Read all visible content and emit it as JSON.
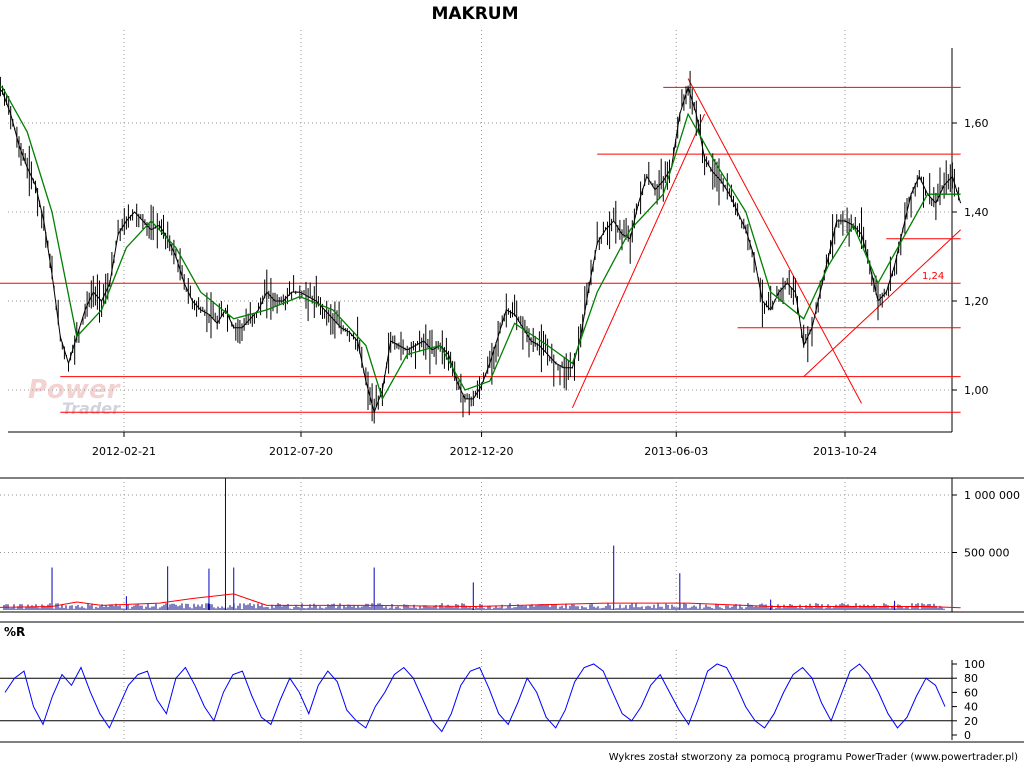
{
  "chart_data": {
    "type": "line",
    "title": "MAKRUM",
    "footer": "Wykres został stworzony za pomocą programu PowerTrader (www.powertrader.pl)",
    "watermark": "PowerTrader",
    "x_tick_labels": [
      "2012-02-21",
      "2012-07-20",
      "2012-12-20",
      "2013-06-03",
      "2013-10-24"
    ],
    "price_panel": {
      "y_ticks": [
        1.0,
        1.2,
        1.4,
        1.6
      ],
      "y_tick_labels": [
        "1,00",
        "1,20",
        "1,40",
        "1,60"
      ],
      "ylim": [
        0.92,
        1.78
      ],
      "annotation": "1,24",
      "series": [
        {
          "kind": "close",
          "color": "#000000",
          "points": [
            [
              "2011-10-20",
              1.72
            ],
            [
              "2011-10-27",
              1.7
            ],
            [
              "2011-11-03",
              1.69
            ],
            [
              "2011-11-10",
              1.67
            ],
            [
              "2011-11-17",
              1.62
            ],
            [
              "2011-11-24",
              1.55
            ],
            [
              "2011-12-01",
              1.5
            ],
            [
              "2011-12-08",
              1.46
            ],
            [
              "2011-12-15",
              1.38
            ],
            [
              "2011-12-22",
              1.26
            ],
            [
              "2011-12-29",
              1.12
            ],
            [
              "2012-01-05",
              1.06
            ],
            [
              "2012-01-12",
              1.12
            ],
            [
              "2012-01-19",
              1.18
            ],
            [
              "2012-01-26",
              1.22
            ],
            [
              "2012-02-02",
              1.2
            ],
            [
              "2012-02-09",
              1.24
            ],
            [
              "2012-02-16",
              1.35
            ],
            [
              "2012-02-23",
              1.38
            ],
            [
              "2012-03-01",
              1.4
            ],
            [
              "2012-03-08",
              1.38
            ],
            [
              "2012-03-15",
              1.36
            ],
            [
              "2012-03-22",
              1.37
            ],
            [
              "2012-03-29",
              1.34
            ],
            [
              "2012-04-05",
              1.3
            ],
            [
              "2012-04-12",
              1.24
            ],
            [
              "2012-04-19",
              1.2
            ],
            [
              "2012-04-26",
              1.18
            ],
            [
              "2012-05-03",
              1.17
            ],
            [
              "2012-05-10",
              1.15
            ],
            [
              "2012-05-17",
              1.18
            ],
            [
              "2012-05-24",
              1.14
            ],
            [
              "2012-05-31",
              1.14
            ],
            [
              "2012-06-07",
              1.16
            ],
            [
              "2012-06-14",
              1.18
            ],
            [
              "2012-06-21",
              1.22
            ],
            [
              "2012-06-28",
              1.2
            ],
            [
              "2012-07-05",
              1.2
            ],
            [
              "2012-07-12",
              1.22
            ],
            [
              "2012-07-19",
              1.22
            ],
            [
              "2012-07-26",
              1.21
            ],
            [
              "2012-08-02",
              1.2
            ],
            [
              "2012-08-09",
              1.18
            ],
            [
              "2012-08-16",
              1.16
            ],
            [
              "2012-08-23",
              1.14
            ],
            [
              "2012-08-30",
              1.13
            ],
            [
              "2012-09-06",
              1.11
            ],
            [
              "2012-09-13",
              1.02
            ],
            [
              "2012-09-20",
              0.95
            ],
            [
              "2012-09-27",
              1.0
            ],
            [
              "2012-10-04",
              1.11
            ],
            [
              "2012-10-11",
              1.1
            ],
            [
              "2012-10-18",
              1.09
            ],
            [
              "2012-10-25",
              1.1
            ],
            [
              "2012-11-01",
              1.11
            ],
            [
              "2012-11-08",
              1.09
            ],
            [
              "2012-11-15",
              1.1
            ],
            [
              "2012-11-22",
              1.08
            ],
            [
              "2012-11-29",
              1.02
            ],
            [
              "2012-12-06",
              0.98
            ],
            [
              "2012-12-13",
              0.98
            ],
            [
              "2012-12-20",
              1.01
            ],
            [
              "2012-12-27",
              1.06
            ],
            [
              "2013-01-03",
              1.12
            ],
            [
              "2013-01-10",
              1.18
            ],
            [
              "2013-01-17",
              1.17
            ],
            [
              "2013-01-24",
              1.14
            ],
            [
              "2013-01-31",
              1.11
            ],
            [
              "2013-02-07",
              1.1
            ],
            [
              "2013-02-14",
              1.08
            ],
            [
              "2013-02-21",
              1.06
            ],
            [
              "2013-02-28",
              1.05
            ],
            [
              "2013-03-07",
              1.05
            ],
            [
              "2013-03-14",
              1.12
            ],
            [
              "2013-03-21",
              1.23
            ],
            [
              "2013-03-28",
              1.33
            ],
            [
              "2013-04-04",
              1.36
            ],
            [
              "2013-04-11",
              1.38
            ],
            [
              "2013-04-18",
              1.35
            ],
            [
              "2013-04-25",
              1.34
            ],
            [
              "2013-05-02",
              1.42
            ],
            [
              "2013-05-09",
              1.48
            ],
            [
              "2013-05-16",
              1.45
            ],
            [
              "2013-05-23",
              1.47
            ],
            [
              "2013-05-30",
              1.5
            ],
            [
              "2013-06-06",
              1.62
            ],
            [
              "2013-06-13",
              1.68
            ],
            [
              "2013-06-20",
              1.62
            ],
            [
              "2013-06-27",
              1.52
            ],
            [
              "2013-07-04",
              1.49
            ],
            [
              "2013-07-11",
              1.47
            ],
            [
              "2013-07-18",
              1.44
            ],
            [
              "2013-07-25",
              1.4
            ],
            [
              "2013-08-01",
              1.36
            ],
            [
              "2013-08-08",
              1.3
            ],
            [
              "2013-08-15",
              1.2
            ],
            [
              "2013-08-22",
              1.18
            ],
            [
              "2013-08-29",
              1.22
            ],
            [
              "2013-09-05",
              1.24
            ],
            [
              "2013-09-12",
              1.22
            ],
            [
              "2013-09-19",
              1.1
            ],
            [
              "2013-09-26",
              1.14
            ],
            [
              "2013-10-03",
              1.22
            ],
            [
              "2013-10-10",
              1.3
            ],
            [
              "2013-10-17",
              1.38
            ],
            [
              "2013-10-24",
              1.38
            ],
            [
              "2013-10-31",
              1.37
            ],
            [
              "2013-11-07",
              1.35
            ],
            [
              "2013-11-14",
              1.28
            ],
            [
              "2013-11-21",
              1.2
            ],
            [
              "2013-11-28",
              1.22
            ],
            [
              "2013-12-05",
              1.28
            ],
            [
              "2013-12-12",
              1.36
            ],
            [
              "2013-12-19",
              1.44
            ],
            [
              "2013-12-26",
              1.48
            ],
            [
              "2014-01-02",
              1.44
            ],
            [
              "2014-01-09",
              1.42
            ],
            [
              "2014-01-16",
              1.46
            ],
            [
              "2014-01-23",
              1.48
            ],
            [
              "2014-01-30",
              1.42
            ]
          ]
        },
        {
          "kind": "moving-average",
          "color": "#008000",
          "points": [
            [
              "2011-10-20",
              1.7
            ],
            [
              "2011-11-10",
              1.68
            ],
            [
              "2011-12-01",
              1.58
            ],
            [
              "2011-12-22",
              1.4
            ],
            [
              "2012-01-12",
              1.12
            ],
            [
              "2012-02-02",
              1.18
            ],
            [
              "2012-02-23",
              1.32
            ],
            [
              "2012-03-15",
              1.38
            ],
            [
              "2012-04-05",
              1.32
            ],
            [
              "2012-04-26",
              1.22
            ],
            [
              "2012-05-24",
              1.16
            ],
            [
              "2012-06-21",
              1.18
            ],
            [
              "2012-07-19",
              1.21
            ],
            [
              "2012-08-16",
              1.18
            ],
            [
              "2012-09-13",
              1.1
            ],
            [
              "2012-09-27",
              0.98
            ],
            [
              "2012-10-18",
              1.08
            ],
            [
              "2012-11-15",
              1.1
            ],
            [
              "2012-12-06",
              1.0
            ],
            [
              "2012-12-27",
              1.02
            ],
            [
              "2013-01-17",
              1.15
            ],
            [
              "2013-02-14",
              1.1
            ],
            [
              "2013-03-07",
              1.06
            ],
            [
              "2013-03-28",
              1.22
            ],
            [
              "2013-04-25",
              1.36
            ],
            [
              "2013-05-23",
              1.44
            ],
            [
              "2013-06-13",
              1.62
            ],
            [
              "2013-07-04",
              1.52
            ],
            [
              "2013-08-01",
              1.4
            ],
            [
              "2013-08-22",
              1.22
            ],
            [
              "2013-09-19",
              1.16
            ],
            [
              "2013-10-10",
              1.28
            ],
            [
              "2013-10-31",
              1.37
            ],
            [
              "2013-11-21",
              1.24
            ],
            [
              "2013-12-12",
              1.34
            ],
            [
              "2014-01-02",
              1.44
            ],
            [
              "2014-01-30",
              1.44
            ]
          ]
        }
      ],
      "horizontal_lines": [
        {
          "y": 1.68,
          "from": "2013-05-23",
          "to": "2014-01-30"
        },
        {
          "y": 1.53,
          "from": "2013-03-28",
          "to": "2014-01-30"
        },
        {
          "y": 1.34,
          "from": "2013-11-28",
          "to": "2014-01-30"
        },
        {
          "y": 1.24,
          "from": "2011-10-20",
          "to": "2014-01-30"
        },
        {
          "y": 1.14,
          "from": "2013-07-25",
          "to": "2014-01-30"
        },
        {
          "y": 1.03,
          "from": "2011-12-29",
          "to": "2014-01-30"
        },
        {
          "y": 0.95,
          "from": "2011-12-29",
          "to": "2014-01-30"
        }
      ],
      "trend_lines": [
        {
          "from": [
            "2013-03-07",
            0.96
          ],
          "to": [
            "2013-06-27",
            1.62
          ]
        },
        {
          "from": [
            "2013-06-13",
            1.7
          ],
          "to": [
            "2013-11-07",
            0.97
          ]
        },
        {
          "from": [
            "2013-09-19",
            1.03
          ],
          "to": [
            "2014-01-30",
            1.36
          ]
        }
      ]
    },
    "volume_panel": {
      "y_ticks": [
        500000,
        1000000
      ],
      "y_tick_labels": [
        "500 000",
        "1 000 000"
      ],
      "ylim": [
        0,
        1200000
      ],
      "spikes": [
        [
          "2011-12-22",
          370000
        ],
        [
          "2012-02-23",
          120000
        ],
        [
          "2012-03-29",
          380000
        ],
        [
          "2012-05-03",
          360000
        ],
        [
          "2012-05-17",
          1150000
        ],
        [
          "2012-05-24",
          370000
        ],
        [
          "2012-09-20",
          370000
        ],
        [
          "2012-12-13",
          240000
        ],
        [
          "2013-04-11",
          560000
        ],
        [
          "2013-06-06",
          320000
        ],
        [
          "2013-08-22",
          90000
        ],
        [
          "2013-12-05",
          80000
        ]
      ],
      "average_line": [
        [
          "2011-10-20",
          20000
        ],
        [
          "2011-12-22",
          30000
        ],
        [
          "2012-01-12",
          70000
        ],
        [
          "2012-02-02",
          40000
        ],
        [
          "2012-03-22",
          60000
        ],
        [
          "2012-04-19",
          100000
        ],
        [
          "2012-05-24",
          140000
        ],
        [
          "2012-06-21",
          40000
        ],
        [
          "2012-09-20",
          40000
        ],
        [
          "2012-12-13",
          30000
        ],
        [
          "2013-04-04",
          60000
        ],
        [
          "2013-06-13",
          60000
        ],
        [
          "2013-08-22",
          30000
        ],
        [
          "2014-01-02",
          30000
        ],
        [
          "2014-01-30",
          20000
        ]
      ]
    },
    "wr_panel": {
      "label": "%R",
      "y_ticks": [
        0,
        20,
        40,
        60,
        80,
        100
      ],
      "y_tick_labels": [
        "0",
        "20",
        "40",
        "60",
        "80",
        "100"
      ],
      "reference_lines": [
        20,
        80
      ],
      "ylim": [
        0,
        100
      ],
      "values": [
        60,
        80,
        90,
        40,
        15,
        55,
        85,
        70,
        95,
        60,
        30,
        10,
        40,
        70,
        85,
        90,
        50,
        30,
        80,
        95,
        70,
        40,
        20,
        60,
        85,
        90,
        55,
        25,
        15,
        50,
        80,
        60,
        30,
        70,
        90,
        75,
        35,
        20,
        10,
        40,
        60,
        85,
        95,
        80,
        50,
        20,
        5,
        30,
        70,
        90,
        95,
        65,
        30,
        15,
        45,
        80,
        60,
        25,
        10,
        35,
        75,
        95,
        100,
        90,
        60,
        30,
        20,
        40,
        70,
        85,
        60,
        35,
        15,
        50,
        90,
        100,
        95,
        70,
        40,
        20,
        10,
        30,
        60,
        85,
        95,
        80,
        45,
        20,
        55,
        90,
        100,
        85,
        60,
        30,
        10,
        25,
        55,
        80,
        70,
        40
      ]
    }
  }
}
